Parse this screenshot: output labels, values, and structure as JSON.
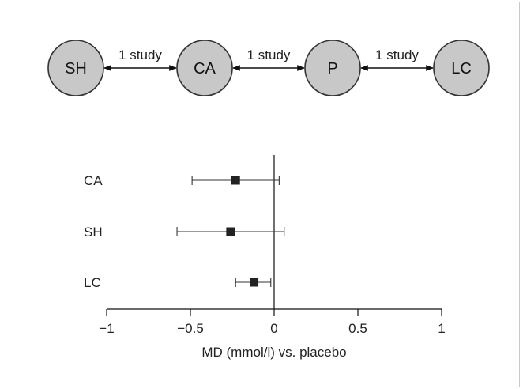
{
  "network": {
    "nodes": [
      {
        "id": "SH",
        "label": "SH"
      },
      {
        "id": "CA",
        "label": "CA"
      },
      {
        "id": "P",
        "label": "P"
      },
      {
        "id": "LC",
        "label": "LC"
      }
    ],
    "edges": [
      {
        "from": "SH",
        "to": "CA",
        "label": "1 study"
      },
      {
        "from": "CA",
        "to": "P",
        "label": "1 study"
      },
      {
        "from": "P",
        "to": "LC",
        "label": "1 study"
      }
    ],
    "node_fill": "#c8c8c8",
    "node_stroke": "#333333"
  },
  "chart_data": {
    "type": "forest",
    "xlabel": "MD (mmol/l) vs. placebo",
    "xlim": [
      -1,
      1
    ],
    "xticks": [
      -1,
      -0.5,
      0,
      0.5,
      1
    ],
    "xtick_labels": [
      "−1",
      "−0.5",
      "0",
      "0.5",
      "1"
    ],
    "reference_line": 0,
    "rows": [
      {
        "label": "CA",
        "estimate": -0.23,
        "ci_low": -0.49,
        "ci_high": 0.03
      },
      {
        "label": "SH",
        "estimate": -0.26,
        "ci_low": -0.58,
        "ci_high": 0.06
      },
      {
        "label": "LC",
        "estimate": -0.12,
        "ci_low": -0.23,
        "ci_high": -0.02
      }
    ],
    "marker_color": "#222222"
  }
}
